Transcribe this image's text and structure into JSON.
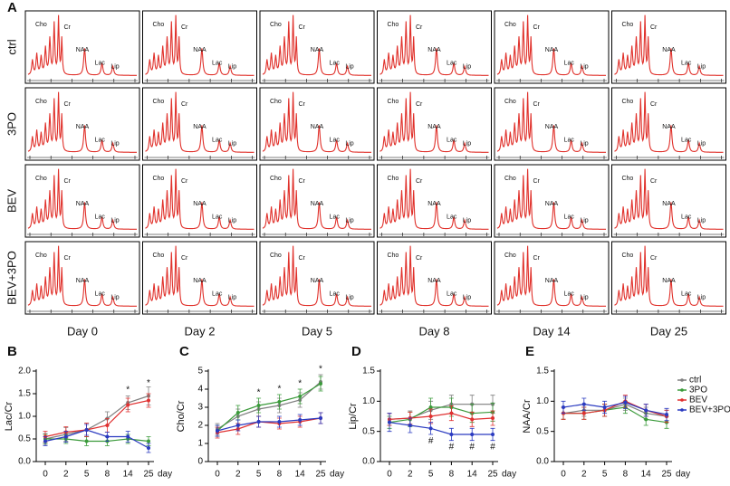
{
  "figure": {
    "panel_label": "A",
    "rows": [
      "ctrl",
      "3PO",
      "BEV",
      "BEV+3PO"
    ],
    "columns": [
      "Day 0",
      "Day 2",
      "Day 5",
      "Day 8",
      "Day 14",
      "Day 25"
    ],
    "peaks": [
      "Cho",
      "Cr",
      "NAA",
      "Lac",
      "Lip"
    ]
  },
  "chart_data": [
    {
      "type": "line",
      "panel_label": "B",
      "ylabel": "Lac/Cr",
      "xlabel": "day",
      "categories": [
        "0",
        "2",
        "5",
        "8",
        "14",
        "25"
      ],
      "ylim": [
        0,
        2
      ],
      "yticks": [
        {
          "value": 0,
          "label": "0.0"
        },
        0.5,
        {
          "value": 1,
          "label": "1.0"
        },
        1.5,
        {
          "value": 2,
          "label": "2.0"
        }
      ],
      "series": [
        {
          "color": "#7f7f7f",
          "values": [
            0.5,
            0.6,
            0.7,
            0.95,
            1.3,
            1.45
          ],
          "errors": [
            0.12,
            0.15,
            0.15,
            0.15,
            0.15,
            0.2
          ]
        },
        {
          "color": "#3a9a3a",
          "values": [
            0.5,
            0.5,
            0.45,
            0.45,
            0.5,
            0.45
          ],
          "errors": [
            0.1,
            0.1,
            0.1,
            0.1,
            0.1,
            0.1
          ]
        },
        {
          "color": "#e03030",
          "values": [
            0.55,
            0.65,
            0.7,
            0.8,
            1.25,
            1.35
          ],
          "errors": [
            0.12,
            0.12,
            0.15,
            0.15,
            0.15,
            0.15
          ]
        },
        {
          "color": "#2a3ac0",
          "values": [
            0.45,
            0.55,
            0.7,
            0.55,
            0.55,
            0.3
          ],
          "errors": [
            0.1,
            0.12,
            0.12,
            0.1,
            0.12,
            0.1
          ]
        }
      ],
      "annotations": [
        {
          "text": "*",
          "x": "14"
        },
        {
          "text": "*",
          "x": "25"
        }
      ]
    },
    {
      "type": "line",
      "panel_label": "C",
      "ylabel": "Cho/Cr",
      "xlabel": "day",
      "categories": [
        "0",
        "2",
        "5",
        "8",
        "14",
        "25"
      ],
      "ylim": [
        0,
        5
      ],
      "yticks": [
        0,
        1,
        2,
        3,
        4,
        5
      ],
      "series": [
        {
          "color": "#7f7f7f",
          "values": [
            1.8,
            2.5,
            2.9,
            3.1,
            3.4,
            4.4
          ],
          "errors": [
            0.3,
            0.4,
            0.4,
            0.4,
            0.4,
            0.4
          ]
        },
        {
          "color": "#3a9a3a",
          "values": [
            1.7,
            2.7,
            3.1,
            3.3,
            3.6,
            4.3
          ],
          "errors": [
            0.3,
            0.4,
            0.4,
            0.4,
            0.4,
            0.4
          ]
        },
        {
          "color": "#e03030",
          "values": [
            1.6,
            1.8,
            2.2,
            2.1,
            2.2,
            2.4
          ],
          "errors": [
            0.3,
            0.3,
            0.3,
            0.3,
            0.3,
            0.3
          ]
        },
        {
          "color": "#2a3ac0",
          "values": [
            1.7,
            2.0,
            2.2,
            2.2,
            2.3,
            2.4
          ],
          "errors": [
            0.3,
            0.3,
            0.3,
            0.3,
            0.3,
            0.3
          ]
        }
      ],
      "annotations": [
        {
          "text": "*",
          "x": "5"
        },
        {
          "text": "*",
          "x": "8"
        },
        {
          "text": "*",
          "x": "14"
        },
        {
          "text": "*",
          "x": "25"
        }
      ]
    },
    {
      "type": "line",
      "panel_label": "D",
      "ylabel": "Lip/Cr",
      "xlabel": "day",
      "categories": [
        "0",
        "2",
        "5",
        "8",
        "14",
        "25"
      ],
      "ylim": [
        0,
        1.5
      ],
      "yticks": [
        {
          "value": 0,
          "label": "0.0"
        },
        0.5,
        {
          "value": 1,
          "label": "1.0"
        },
        1.5
      ],
      "series": [
        {
          "color": "#7f7f7f",
          "values": [
            0.7,
            0.72,
            0.85,
            0.95,
            0.95,
            0.95
          ],
          "errors": [
            0.1,
            0.12,
            0.15,
            0.15,
            0.15,
            0.15
          ]
        },
        {
          "color": "#3a9a3a",
          "values": [
            0.65,
            0.7,
            0.9,
            0.9,
            0.8,
            0.82
          ],
          "errors": [
            0.1,
            0.12,
            0.15,
            0.15,
            0.15,
            0.15
          ]
        },
        {
          "color": "#e03030",
          "values": [
            0.7,
            0.72,
            0.75,
            0.8,
            0.7,
            0.72
          ],
          "errors": [
            0.1,
            0.1,
            0.12,
            0.12,
            0.12,
            0.12
          ]
        },
        {
          "color": "#2a3ac0",
          "values": [
            0.65,
            0.6,
            0.55,
            0.45,
            0.45,
            0.45
          ],
          "errors": [
            0.15,
            0.12,
            0.1,
            0.1,
            0.1,
            0.1
          ]
        }
      ],
      "annotations": [
        {
          "text": "#",
          "x": "5"
        },
        {
          "text": "#",
          "x": "8"
        },
        {
          "text": "#",
          "x": "14"
        },
        {
          "text": "#",
          "x": "25"
        }
      ]
    },
    {
      "type": "line",
      "panel_label": "E",
      "ylabel": "NAA/Cr",
      "xlabel": "day",
      "categories": [
        "0",
        "2",
        "5",
        "8",
        "14",
        "25"
      ],
      "ylim": [
        0,
        1.5
      ],
      "yticks": [
        {
          "value": 0,
          "label": "0.0"
        },
        0.5,
        {
          "value": 1,
          "label": "1.0"
        },
        1.5
      ],
      "legend": true,
      "series": [
        {
          "name": "ctrl",
          "color": "#7f7f7f",
          "values": [
            0.8,
            0.85,
            0.85,
            0.95,
            0.8,
            0.75
          ],
          "errors": [
            0.1,
            0.1,
            0.1,
            0.1,
            0.1,
            0.1
          ]
        },
        {
          "name": "3PO",
          "color": "#3a9a3a",
          "values": [
            0.8,
            0.8,
            0.85,
            0.9,
            0.7,
            0.65
          ],
          "errors": [
            0.1,
            0.1,
            0.1,
            0.1,
            0.1,
            0.1
          ]
        },
        {
          "name": "BEV",
          "color": "#e03030",
          "values": [
            0.8,
            0.8,
            0.85,
            1.0,
            0.85,
            0.75
          ],
          "errors": [
            0.1,
            0.1,
            0.1,
            0.1,
            0.1,
            0.1
          ]
        },
        {
          "name": "BEV+3PO",
          "color": "#2a3ac0",
          "values": [
            0.9,
            0.95,
            0.9,
            0.98,
            0.85,
            0.78
          ],
          "errors": [
            0.1,
            0.1,
            0.1,
            0.1,
            0.1,
            0.1
          ]
        }
      ]
    }
  ]
}
